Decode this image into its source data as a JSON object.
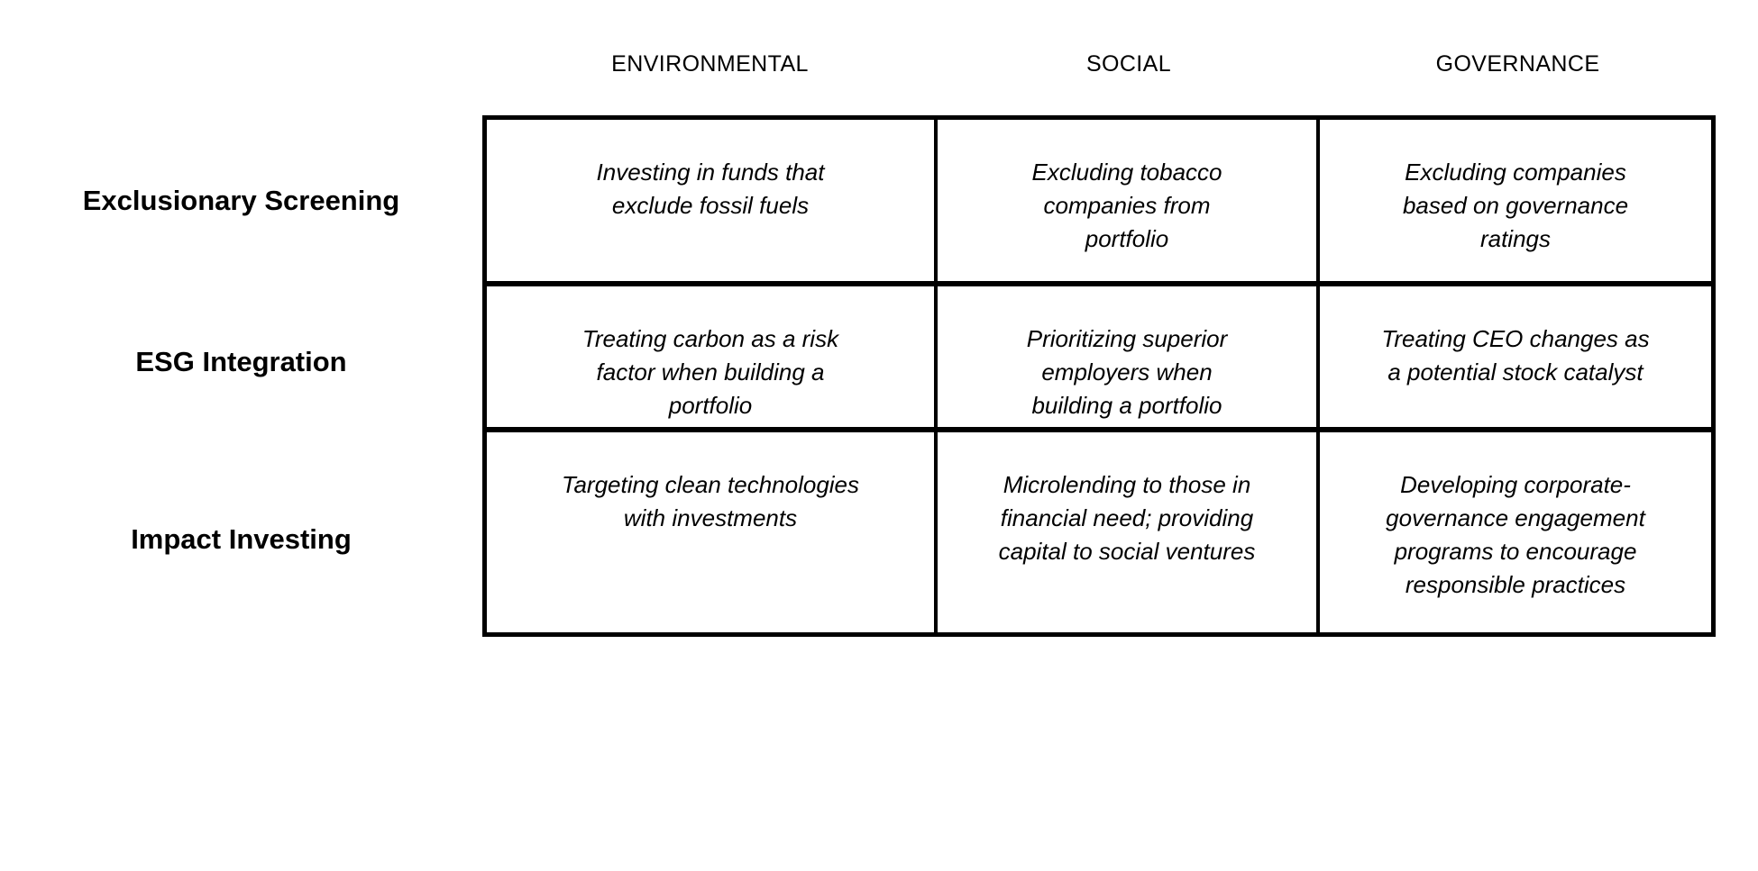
{
  "figure": {
    "description": "ESG investing approaches matrix"
  },
  "matrix": {
    "columns": [
      "ENVIRONMENTAL",
      "SOCIAL",
      "GOVERNANCE"
    ],
    "rows": [
      {
        "label": "Exclusionary Screening",
        "cells": [
          "Investing in funds that\nexclude fossil fuels",
          "Excluding tobacco\ncompanies from\nportfolio",
          "Excluding companies\nbased on governance\nratings"
        ]
      },
      {
        "label": "ESG Integration",
        "cells": [
          "Treating carbon as a risk\nfactor when building a\nportfolio",
          "Prioritizing superior\nemployers when\nbuilding a portfolio",
          "Treating CEO changes as\na potential stock catalyst"
        ]
      },
      {
        "label": "Impact Investing",
        "cells": [
          "Targeting clean technologies\nwith investments",
          "Microlending to those in\nfinancial need; providing\ncapital to social ventures",
          "Developing corporate-\ngovernance engagement\nprograms to encourage\nresponsible practices"
        ]
      }
    ]
  },
  "colors": {
    "background": "#ffffff",
    "border": "#000000",
    "text": "#000000"
  }
}
